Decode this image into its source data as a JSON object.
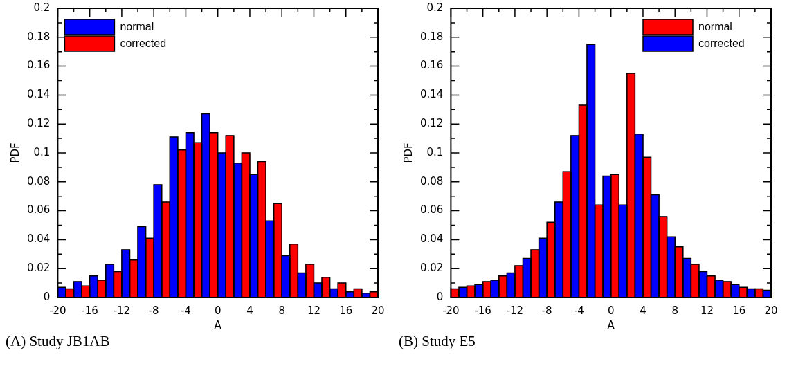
{
  "chart_data": [
    {
      "type": "histogram",
      "xlabel": "A",
      "ylabel": "PDF",
      "bins": [
        -20,
        -18,
        -16,
        -14,
        -12,
        -10,
        -8,
        -6,
        -4,
        -2,
        0,
        2,
        4,
        6,
        8,
        10,
        12,
        14,
        16,
        18,
        20
      ],
      "series": [
        {
          "name": "normal",
          "color": "#0000ff",
          "values": [
            0.007,
            0.011,
            0.015,
            0.023,
            0.033,
            0.049,
            0.078,
            0.111,
            0.114,
            0.127,
            0.1,
            0.093,
            0.085,
            0.053,
            0.029,
            0.017,
            0.01,
            0.006,
            0.004,
            0.003
          ]
        },
        {
          "name": "corrected",
          "color": "#ff0000",
          "values": [
            0.006,
            0.008,
            0.012,
            0.018,
            0.026,
            0.041,
            0.066,
            0.102,
            0.107,
            0.114,
            0.112,
            0.1,
            0.094,
            0.065,
            0.037,
            0.023,
            0.014,
            0.01,
            0.006,
            0.004
          ]
        }
      ],
      "xlim": [
        -20,
        20
      ],
      "xticks": [
        -20,
        {
          "value": -18,
          "label": null
        },
        -16,
        {
          "value": -14,
          "label": null
        },
        -12,
        {
          "value": -10,
          "label": null
        },
        -8,
        {
          "value": -6,
          "label": null
        },
        -4,
        {
          "value": -2,
          "label": null
        },
        0,
        {
          "value": 2,
          "label": null
        },
        4,
        {
          "value": 6,
          "label": null
        },
        8,
        {
          "value": 10,
          "label": null
        },
        12,
        {
          "value": 14,
          "label": null
        },
        16,
        {
          "value": 18,
          "label": null
        },
        20
      ],
      "ylim": [
        0,
        0.2
      ],
      "yticks": [
        0,
        {
          "value": 0.01,
          "label": null
        },
        0.02,
        {
          "value": 0.03,
          "label": null
        },
        0.04,
        {
          "value": 0.05,
          "label": null
        },
        0.06,
        {
          "value": 0.07,
          "label": null
        },
        0.08,
        {
          "value": 0.09,
          "label": null
        },
        0.1,
        {
          "value": 0.11,
          "label": null
        },
        0.12,
        {
          "value": 0.13,
          "label": null
        },
        0.14,
        {
          "value": 0.15,
          "label": null
        },
        0.16,
        {
          "value": 0.17,
          "label": null
        },
        0.18,
        {
          "value": 0.19,
          "label": null
        },
        0.2
      ],
      "legend": "top left",
      "annotations": [
        "(A) Study JB1AB"
      ]
    },
    {
      "type": "histogram",
      "xlabel": "A",
      "ylabel": "PDF",
      "bins": [
        -20,
        -18,
        -16,
        -14,
        -12,
        -10,
        -8,
        -6,
        -4,
        -2,
        0,
        2,
        4,
        6,
        8,
        10,
        12,
        14,
        16,
        18,
        20
      ],
      "series": [
        {
          "name": "normal",
          "color": "#ff0000",
          "values": [
            0.006,
            0.008,
            0.011,
            0.015,
            0.022,
            0.033,
            0.052,
            0.087,
            0.133,
            0.064,
            0.085,
            0.155,
            0.097,
            0.056,
            0.035,
            0.023,
            0.015,
            0.011,
            0.007,
            0.006
          ]
        },
        {
          "name": "corrected",
          "color": "#0000ff",
          "values": [
            0.007,
            0.009,
            0.012,
            0.017,
            0.027,
            0.041,
            0.066,
            0.112,
            0.175,
            0.084,
            0.064,
            0.113,
            0.071,
            0.042,
            0.027,
            0.018,
            0.012,
            0.009,
            0.006,
            0.005
          ]
        }
      ],
      "xlim": [
        -20,
        20
      ],
      "xticks": [
        -20,
        {
          "value": -18,
          "label": null
        },
        -16,
        {
          "value": -14,
          "label": null
        },
        -12,
        {
          "value": -10,
          "label": null
        },
        -8,
        {
          "value": -6,
          "label": null
        },
        -4,
        {
          "value": -2,
          "label": null
        },
        0,
        {
          "value": 2,
          "label": null
        },
        4,
        {
          "value": 6,
          "label": null
        },
        8,
        {
          "value": 10,
          "label": null
        },
        12,
        {
          "value": 14,
          "label": null
        },
        16,
        {
          "value": 18,
          "label": null
        },
        20
      ],
      "ylim": [
        0,
        0.2
      ],
      "yticks": [
        0,
        {
          "value": 0.01,
          "label": null
        },
        0.02,
        {
          "value": 0.03,
          "label": null
        },
        0.04,
        {
          "value": 0.05,
          "label": null
        },
        0.06,
        {
          "value": 0.07,
          "label": null
        },
        0.08,
        {
          "value": 0.09,
          "label": null
        },
        0.1,
        {
          "value": 0.11,
          "label": null
        },
        0.12,
        {
          "value": 0.13,
          "label": null
        },
        0.14,
        {
          "value": 0.15,
          "label": null
        },
        0.16,
        {
          "value": 0.17,
          "label": null
        },
        0.18,
        {
          "value": 0.19,
          "label": null
        },
        0.2
      ],
      "legend": "top right",
      "annotations": [
        "(B) Study E5"
      ]
    }
  ]
}
